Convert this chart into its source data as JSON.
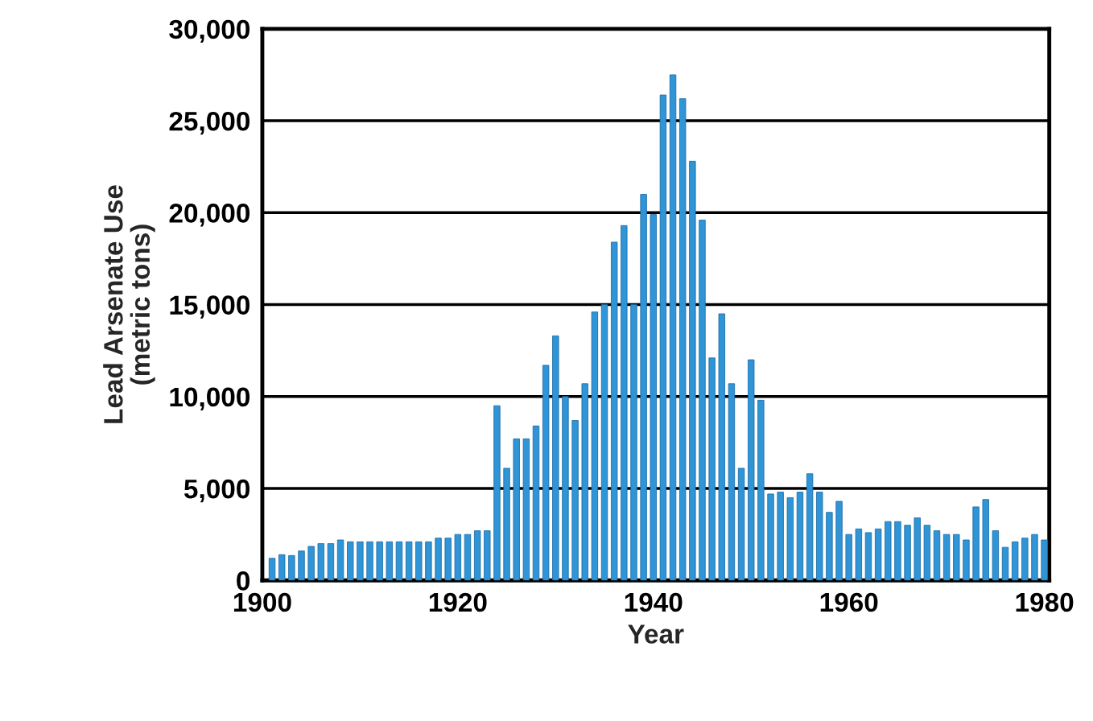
{
  "chart_data": {
    "type": "bar",
    "xlabel": "Year",
    "ylabel": "Lead Arsenate Use\n(metric tons)",
    "x": [
      1901,
      1902,
      1903,
      1904,
      1905,
      1906,
      1907,
      1908,
      1909,
      1910,
      1911,
      1912,
      1913,
      1914,
      1915,
      1916,
      1917,
      1918,
      1919,
      1920,
      1921,
      1922,
      1923,
      1924,
      1925,
      1926,
      1927,
      1928,
      1929,
      1930,
      1931,
      1932,
      1933,
      1934,
      1935,
      1936,
      1937,
      1938,
      1939,
      1940,
      1941,
      1942,
      1943,
      1944,
      1945,
      1946,
      1947,
      1948,
      1949,
      1950,
      1951,
      1952,
      1953,
      1954,
      1955,
      1956,
      1957,
      1958,
      1959,
      1960,
      1961,
      1962,
      1963,
      1964,
      1965,
      1966,
      1967,
      1968,
      1969,
      1970,
      1971,
      1972,
      1973,
      1974,
      1975,
      1976,
      1977,
      1978,
      1979,
      1980
    ],
    "values": [
      1200,
      1400,
      1350,
      1600,
      1850,
      2000,
      2000,
      2200,
      2100,
      2100,
      2100,
      2100,
      2100,
      2100,
      2100,
      2100,
      2100,
      2300,
      2300,
      2500,
      2500,
      2700,
      2700,
      9500,
      6100,
      7700,
      7700,
      8400,
      11700,
      13300,
      10000,
      8700,
      10700,
      14600,
      15000,
      18400,
      19300,
      15000,
      21000,
      19900,
      26400,
      27500,
      26200,
      22800,
      19600,
      12100,
      14500,
      10700,
      6100,
      12000,
      9800,
      4700,
      4800,
      4500,
      4800,
      5800,
      4800,
      3700,
      4300,
      2500,
      2800,
      2600,
      2800,
      3200,
      3200,
      3000,
      3400,
      3000,
      2700,
      2500,
      2500,
      2200,
      4000,
      4400,
      2700,
      1800,
      2100,
      2300,
      2500,
      2200
    ],
    "color": "#2f95d6",
    "xlim": [
      1900,
      1980.5
    ],
    "xticks": [
      1900,
      1920,
      1940,
      1960,
      1980
    ],
    "ylim": [
      0,
      30000
    ],
    "yticks": [
      {
        "value": 0,
        "label": "0"
      },
      {
        "value": 5000,
        "label": "5,000"
      },
      {
        "value": 10000,
        "label": "10,000"
      },
      {
        "value": 15000,
        "label": "15,000"
      },
      {
        "value": 20000,
        "label": "20,000"
      },
      {
        "value": 25000,
        "label": "25,000"
      },
      {
        "value": 30000,
        "label": "30,000"
      }
    ],
    "grid": "y",
    "legend": false
  }
}
